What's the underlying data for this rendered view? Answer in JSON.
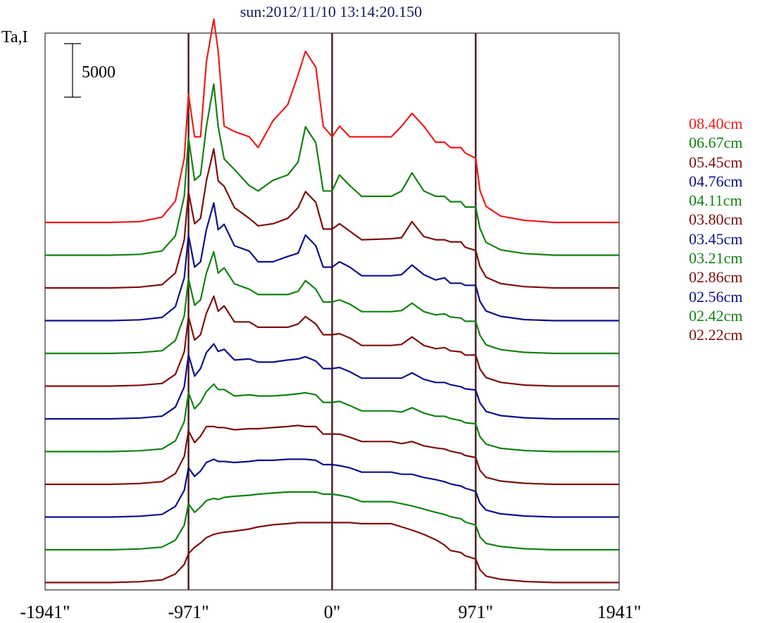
{
  "chart_data": {
    "type": "line",
    "title": "sun:2012/11/10 13:14:20.150",
    "ylabel": "Ta,I",
    "scale_bar_label": "5000",
    "xlim": [
      -1941,
      1941
    ],
    "x_ticks": [
      {
        "value": -1941,
        "label": "-1941\""
      },
      {
        "value": -971,
        "label": "-971\""
      },
      {
        "value": 0,
        "label": "0\""
      },
      {
        "value": 971,
        "label": "971\""
      },
      {
        "value": 1941,
        "label": "1941\""
      }
    ],
    "vertical_lines": [
      -971,
      0,
      971
    ],
    "stacked": true,
    "colors": {
      "red": "#ee1c1c",
      "green": "#128212",
      "brown": "#7d0f0f",
      "blue": "#10108a",
      "frame": "#000000",
      "marker": "#4a2222",
      "title": "#1a1a60"
    },
    "series": [
      {
        "name": "08.40cm",
        "color": "#ee1c1c",
        "x": [
          -1941,
          -1500,
          -1300,
          -1150,
          -1060,
          -1000,
          -971,
          -930,
          -890,
          -850,
          -800,
          -770,
          -730,
          -660,
          -560,
          -500,
          -400,
          -300,
          -230,
          -180,
          -110,
          -60,
          0,
          50,
          120,
          200,
          400,
          470,
          540,
          620,
          700,
          760,
          800,
          871,
          900,
          971,
          1000,
          1041,
          1140,
          1300,
          1500,
          1941
        ],
        "y": [
          0,
          0,
          80,
          500,
          2000,
          6000,
          12000,
          8000,
          8000,
          15000,
          19000,
          16000,
          9000,
          8500,
          8000,
          7000,
          9500,
          11000,
          13800,
          16000,
          14500,
          9000,
          8000,
          9000,
          8000,
          8000,
          8000,
          9000,
          10200,
          9000,
          7500,
          7500,
          7000,
          7000,
          6500,
          6000,
          3000,
          1500,
          600,
          200,
          0,
          0
        ]
      },
      {
        "name": "06.67cm",
        "color": "#128212",
        "x": [
          -1941,
          -1500,
          -1300,
          -1150,
          -1060,
          -1000,
          -971,
          -930,
          -890,
          -850,
          -800,
          -770,
          -730,
          -660,
          -560,
          -500,
          -400,
          -300,
          -230,
          -180,
          -110,
          -60,
          0,
          50,
          120,
          200,
          400,
          470,
          540,
          620,
          700,
          760,
          800,
          871,
          900,
          971,
          1000,
          1041,
          1140,
          1300,
          1500,
          1941
        ],
        "y": [
          0,
          0,
          80,
          400,
          1800,
          5500,
          11000,
          7000,
          7500,
          12000,
          16000,
          12000,
          9000,
          8000,
          6500,
          6000,
          7000,
          7500,
          8700,
          12000,
          10500,
          6000,
          6000,
          7500,
          6500,
          5500,
          5500,
          6000,
          7700,
          6000,
          5500,
          5500,
          5000,
          5000,
          4500,
          4500,
          2500,
          1200,
          500,
          150,
          0,
          0
        ]
      },
      {
        "name": "05.45cm",
        "color": "#7d0f0f",
        "x": [
          -1941,
          -1500,
          -1300,
          -1150,
          -1060,
          -1000,
          -971,
          -930,
          -890,
          -850,
          -800,
          -770,
          -730,
          -660,
          -560,
          -500,
          -400,
          -300,
          -230,
          -180,
          -110,
          -60,
          0,
          50,
          120,
          200,
          400,
          470,
          540,
          620,
          700,
          760,
          800,
          871,
          900,
          971,
          1000,
          1041,
          1140,
          1300,
          1500,
          1941
        ],
        "y": [
          0,
          0,
          80,
          300,
          1400,
          4500,
          9000,
          6000,
          6500,
          10000,
          13000,
          10000,
          9500,
          7500,
          6500,
          5800,
          6000,
          6500,
          7500,
          9000,
          8000,
          5500,
          5500,
          6000,
          5300,
          4500,
          4600,
          4700,
          6200,
          4800,
          4500,
          4500,
          4300,
          4300,
          3800,
          3500,
          2000,
          1000,
          400,
          120,
          0,
          0
        ]
      },
      {
        "name": "04.76cm",
        "color": "#10108a",
        "x": [
          -1941,
          -1500,
          -1300,
          -1150,
          -1060,
          -1000,
          -971,
          -930,
          -890,
          -850,
          -800,
          -770,
          -730,
          -660,
          -560,
          -500,
          -400,
          -300,
          -230,
          -180,
          -110,
          -60,
          0,
          50,
          120,
          200,
          400,
          470,
          540,
          620,
          700,
          760,
          800,
          871,
          900,
          971,
          1000,
          1041,
          1140,
          1300,
          1500,
          1941
        ],
        "y": [
          0,
          0,
          80,
          300,
          1300,
          4000,
          8000,
          5000,
          5500,
          8500,
          11000,
          8500,
          9000,
          7000,
          6500,
          5500,
          5500,
          6000,
          6300,
          8000,
          7000,
          5000,
          5000,
          5500,
          5000,
          4200,
          4200,
          4300,
          5200,
          4300,
          3800,
          4000,
          3500,
          3500,
          3300,
          3300,
          1800,
          900,
          400,
          100,
          0,
          0
        ]
      },
      {
        "name": "04.11cm",
        "color": "#128212",
        "x": [
          -1941,
          -1500,
          -1300,
          -1150,
          -1060,
          -1000,
          -971,
          -930,
          -890,
          -850,
          -800,
          -770,
          -730,
          -660,
          -560,
          -500,
          -400,
          -300,
          -230,
          -180,
          -110,
          -60,
          0,
          50,
          120,
          200,
          400,
          470,
          540,
          620,
          700,
          760,
          800,
          871,
          900,
          971,
          1000,
          1041,
          1140,
          1300,
          1500,
          1941
        ],
        "y": [
          0,
          0,
          80,
          250,
          1200,
          3500,
          7000,
          4500,
          5000,
          7500,
          9500,
          7500,
          8000,
          6500,
          6000,
          5500,
          5500,
          5500,
          5800,
          6800,
          6000,
          4800,
          4800,
          5000,
          4600,
          3900,
          3900,
          4000,
          4700,
          3900,
          3600,
          3700,
          3400,
          3300,
          3000,
          3000,
          1700,
          800,
          350,
          100,
          0,
          0
        ]
      },
      {
        "name": "03.80cm",
        "color": "#7d0f0f",
        "x": [
          -1941,
          -1500,
          -1300,
          -1150,
          -1060,
          -1000,
          -971,
          -930,
          -890,
          -850,
          -800,
          -770,
          -730,
          -660,
          -560,
          -500,
          -400,
          -300,
          -230,
          -180,
          -110,
          -60,
          0,
          50,
          120,
          200,
          400,
          470,
          540,
          620,
          700,
          760,
          800,
          871,
          900,
          971,
          1000,
          1041,
          1140,
          1300,
          1500,
          1941
        ],
        "y": [
          0,
          0,
          80,
          250,
          1100,
          3200,
          6500,
          4300,
          4800,
          6800,
          8400,
          7000,
          7500,
          6000,
          6000,
          5500,
          5500,
          5500,
          5800,
          6500,
          5800,
          4800,
          4800,
          4900,
          4500,
          3800,
          3800,
          3900,
          4600,
          3800,
          3500,
          3600,
          3300,
          3200,
          2900,
          2900,
          1600,
          800,
          350,
          100,
          0,
          0
        ]
      },
      {
        "name": "03.45cm",
        "color": "#10108a",
        "x": [
          -1941,
          -1500,
          -1300,
          -1150,
          -1060,
          -1000,
          -971,
          -930,
          -890,
          -850,
          -800,
          -770,
          -730,
          -660,
          -560,
          -500,
          -400,
          -300,
          -230,
          -180,
          -110,
          -60,
          0,
          50,
          120,
          200,
          400,
          470,
          540,
          620,
          700,
          760,
          800,
          871,
          900,
          971,
          1000,
          1041,
          1140,
          1300,
          1500,
          1941
        ],
        "y": [
          0,
          0,
          80,
          250,
          1100,
          3000,
          6000,
          4000,
          4700,
          6200,
          7000,
          6300,
          6500,
          5500,
          5600,
          5300,
          5300,
          5500,
          5600,
          5800,
          5400,
          4700,
          4700,
          4800,
          4400,
          3800,
          3800,
          3800,
          4300,
          3700,
          3400,
          3400,
          3200,
          3000,
          2800,
          2700,
          1500,
          700,
          300,
          100,
          0,
          0
        ]
      },
      {
        "name": "03.21cm",
        "color": "#128212",
        "x": [
          -1941,
          -1500,
          -1300,
          -1150,
          -1060,
          -1000,
          -971,
          -930,
          -890,
          -850,
          -800,
          -770,
          -730,
          -660,
          -560,
          -500,
          -400,
          -300,
          -230,
          -180,
          -110,
          -60,
          0,
          50,
          120,
          200,
          400,
          470,
          540,
          620,
          700,
          760,
          800,
          871,
          900,
          971,
          1000,
          1041,
          1140,
          1300,
          1500,
          1941
        ],
        "y": [
          0,
          0,
          80,
          250,
          1000,
          2800,
          5500,
          4000,
          4600,
          5600,
          6300,
          5800,
          5800,
          5200,
          5300,
          5200,
          5200,
          5300,
          5400,
          5500,
          5300,
          4600,
          4600,
          4700,
          4300,
          3800,
          3800,
          3700,
          4100,
          3600,
          3300,
          3300,
          3100,
          2900,
          2700,
          2600,
          1400,
          700,
          300,
          100,
          0,
          0
        ]
      },
      {
        "name": "02.86cm",
        "color": "#7d0f0f",
        "x": [
          -1941,
          -1500,
          -1300,
          -1150,
          -1060,
          -1000,
          -971,
          -930,
          -890,
          -850,
          -800,
          -770,
          -730,
          -660,
          -560,
          -500,
          -400,
          -300,
          -230,
          -180,
          -110,
          -60,
          0,
          50,
          120,
          200,
          400,
          470,
          540,
          620,
          700,
          760,
          800,
          871,
          900,
          971,
          1000,
          1041,
          1140,
          1300,
          1500,
          1941
        ],
        "y": [
          0,
          0,
          80,
          250,
          1000,
          2600,
          5000,
          3900,
          4500,
          5400,
          5400,
          5300,
          5300,
          5100,
          5200,
          5200,
          5300,
          5400,
          5500,
          5400,
          5400,
          4700,
          4700,
          4700,
          4400,
          4000,
          4000,
          3800,
          4000,
          3600,
          3400,
          3300,
          3100,
          2900,
          2700,
          2500,
          1300,
          650,
          300,
          100,
          0,
          0
        ]
      },
      {
        "name": "02.56cm",
        "color": "#10108a",
        "x": [
          -1941,
          -1500,
          -1300,
          -1150,
          -1060,
          -1000,
          -971,
          -930,
          -890,
          -850,
          -800,
          -770,
          -730,
          -660,
          -560,
          -500,
          -400,
          -300,
          -230,
          -180,
          -110,
          -60,
          0,
          50,
          120,
          200,
          400,
          470,
          540,
          620,
          700,
          760,
          800,
          871,
          900,
          971,
          1000,
          1041,
          1140,
          1300,
          1500,
          1941
        ],
        "y": [
          0,
          0,
          80,
          250,
          1000,
          2500,
          4600,
          3800,
          4300,
          5100,
          5400,
          5200,
          5200,
          5100,
          5200,
          5300,
          5300,
          5400,
          5400,
          5400,
          5300,
          4900,
          4900,
          4800,
          4600,
          4200,
          4200,
          4000,
          4000,
          3700,
          3500,
          3300,
          3100,
          2900,
          2700,
          2400,
          1300,
          650,
          300,
          100,
          0,
          0
        ]
      },
      {
        "name": "02.42cm",
        "color": "#128212",
        "x": [
          -1941,
          -1500,
          -1300,
          -1150,
          -1060,
          -1000,
          -971,
          -930,
          -890,
          -850,
          -800,
          -770,
          -730,
          -660,
          -560,
          -500,
          -400,
          -300,
          -230,
          -180,
          -110,
          -60,
          0,
          50,
          120,
          200,
          400,
          470,
          540,
          620,
          700,
          760,
          800,
          871,
          900,
          971,
          1000,
          1041,
          1140,
          1300,
          1500,
          1941
        ],
        "y": [
          0,
          0,
          80,
          250,
          900,
          2300,
          4300,
          3500,
          4000,
          4600,
          4800,
          4700,
          4900,
          5000,
          5100,
          5200,
          5300,
          5400,
          5400,
          5400,
          5400,
          5200,
          5200,
          5100,
          4900,
          4500,
          4500,
          4300,
          4100,
          3800,
          3500,
          3300,
          3100,
          2900,
          2600,
          2300,
          1200,
          600,
          300,
          100,
          0,
          0
        ]
      },
      {
        "name": "02.22cm",
        "color": "#7d0f0f",
        "x": [
          -1941,
          -1500,
          -1300,
          -1150,
          -1060,
          -1000,
          -971,
          -930,
          -890,
          -850,
          -800,
          -770,
          -730,
          -660,
          -560,
          -500,
          -400,
          -300,
          -230,
          -180,
          -110,
          -60,
          0,
          50,
          120,
          200,
          400,
          470,
          540,
          620,
          700,
          760,
          800,
          871,
          900,
          971,
          1000,
          1041,
          1140,
          1300,
          1500,
          1941
        ],
        "y": [
          0,
          0,
          80,
          250,
          800,
          1700,
          2700,
          3300,
          3700,
          4200,
          4500,
          4600,
          4700,
          4800,
          5000,
          5200,
          5400,
          5500,
          5600,
          5600,
          5600,
          5600,
          5600,
          5600,
          5600,
          5500,
          5500,
          5200,
          4900,
          4500,
          4000,
          3500,
          3000,
          2800,
          2500,
          2200,
          1200,
          600,
          300,
          100,
          0,
          0
        ]
      }
    ]
  }
}
